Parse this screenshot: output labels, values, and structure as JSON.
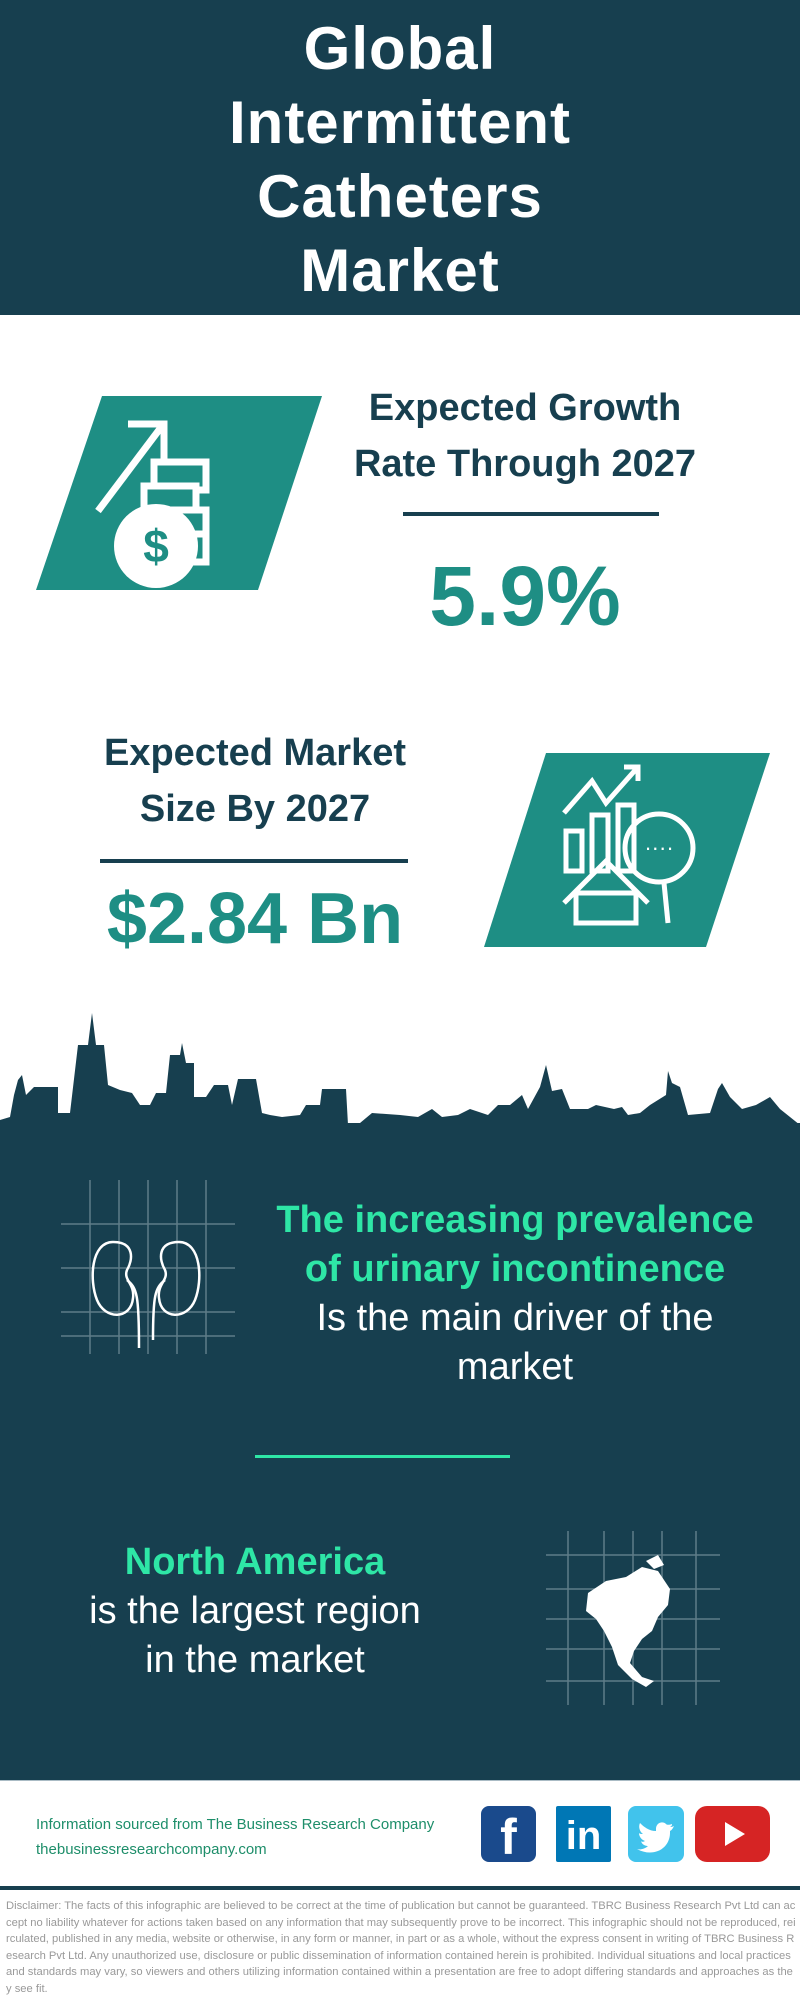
{
  "header": {
    "title_lines": [
      "Global",
      "Intermittent",
      "Catheters",
      "Market"
    ]
  },
  "growth": {
    "label_lines": [
      "Expected Growth",
      "Rate Through 2027"
    ],
    "value": "5.9%",
    "icon": "money-growth-icon"
  },
  "market_size": {
    "label_lines": [
      "Expected Market",
      "Size By 2027"
    ],
    "value": "$2.84 Bn",
    "icon": "market-analysis-icon"
  },
  "driver": {
    "highlight_lines": [
      "The increasing prevalence",
      "of urinary incontinence"
    ],
    "text_lines": [
      "Is the main driver of the",
      "market"
    ],
    "icon": "kidneys-icon"
  },
  "region": {
    "highlight": "North America",
    "text_lines": [
      "is the largest region",
      "in the market"
    ],
    "icon": "north-america-map-icon"
  },
  "footer": {
    "source": "Information sourced from The Business Research Company",
    "website": "thebusinessresearchcompany.com",
    "social": [
      "facebook",
      "linkedin",
      "twitter",
      "youtube"
    ]
  },
  "disclaimer": "Disclaimer: The facts of this infographic are believed to be correct at the time of publication but cannot be guaranteed. TBRC Business Research Pvt Ltd can accept no liability whatever for actions taken based on any information that may subsequently prove to be incorrect. This infographic should not be reproduced, reirculated, published in any media, website or otherwise, in any form or manner, in part or as a whole, without the express consent in writing of TBRC Business Research Pvt Ltd. Any unauthorized use, disclosure or public dissemination of information contained herein is prohibited. Individual situations and local practices and standards may vary, so viewers and others utilizing information contained within a presentation are free to adopt differing standards and approaches as they see fit.",
  "colors": {
    "dark": "#173f4f",
    "teal": "#1e8e84",
    "green": "#2ee6a6",
    "facebook": "#1a4a8c",
    "linkedin": "#0077b5",
    "twitter": "#41c3ec",
    "youtube": "#d62424"
  }
}
